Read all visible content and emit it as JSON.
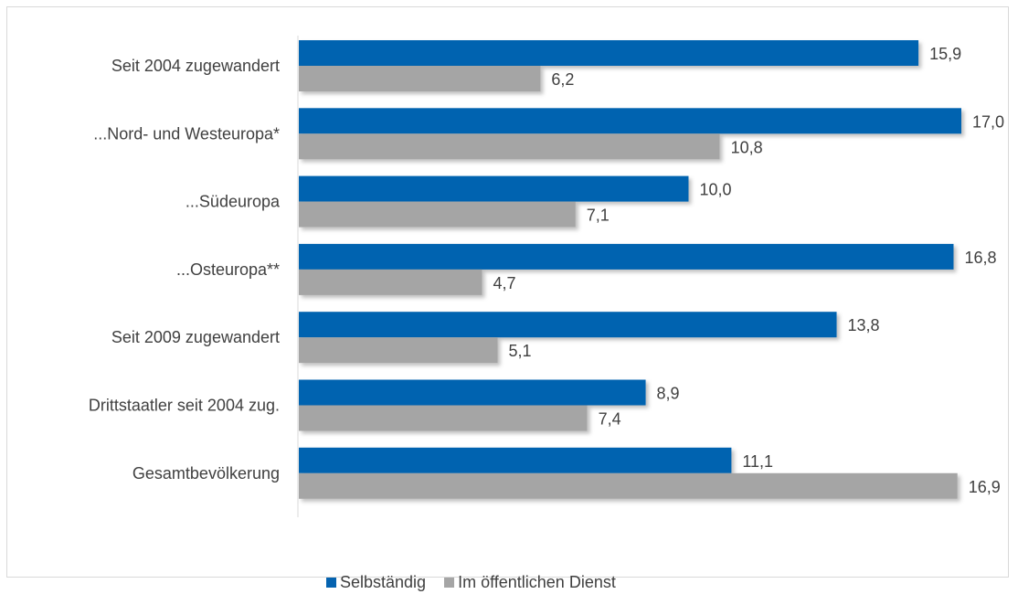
{
  "chart_data": {
    "type": "bar",
    "orientation": "horizontal",
    "categories": [
      "Seit 2004 zugewandert",
      "...Nord- und Westeuropa*",
      "...Südeuropa",
      "...Osteuropa**",
      "Seit 2009 zugewandert",
      "Drittstaatler seit 2004 zug.",
      "Gesamtbevölkerung"
    ],
    "series": [
      {
        "name": "Selbständig",
        "color": "#0563b0",
        "values": [
          15.9,
          17.0,
          10.0,
          16.8,
          13.8,
          8.9,
          11.1
        ],
        "labels": [
          "15,9",
          "17,0",
          "10,0",
          "16,8",
          "13,8",
          "8,9",
          "11,1"
        ]
      },
      {
        "name": "Im öffentlichen Dienst",
        "color": "#a5a5a5",
        "values": [
          6.2,
          10.8,
          7.1,
          4.7,
          5.1,
          7.4,
          16.9
        ],
        "labels": [
          "6,2",
          "10,8",
          "7,1",
          "4,7",
          "5,1",
          "7,4",
          "16,9"
        ]
      }
    ],
    "xlim": [
      0,
      17.0
    ],
    "grid": false,
    "legend_position": "bottom"
  }
}
